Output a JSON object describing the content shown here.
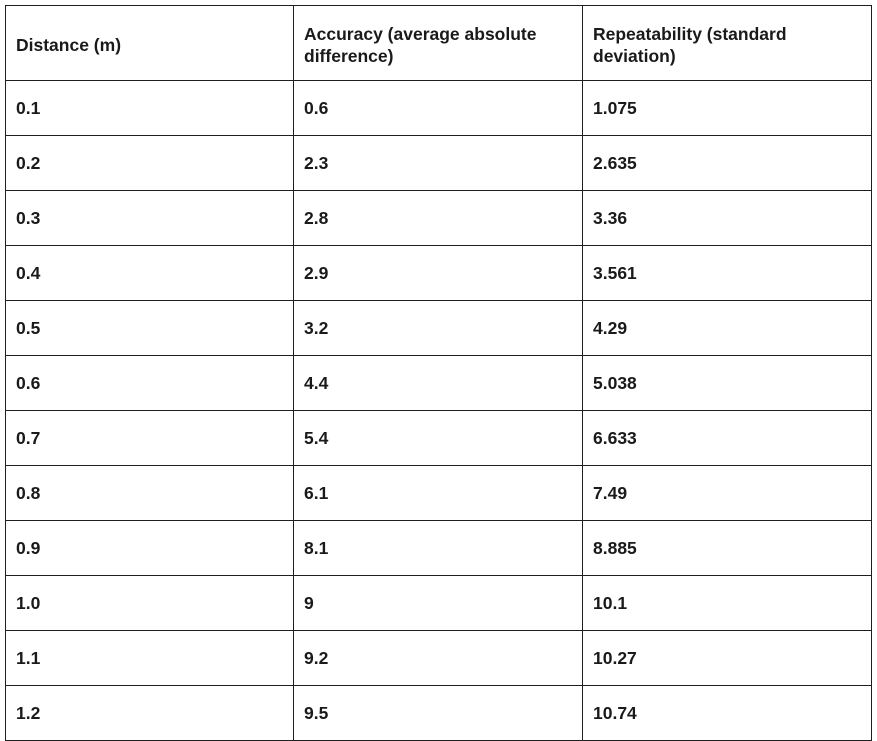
{
  "table": {
    "headers": [
      "Distance (m)",
      "Accuracy (average absolute difference)",
      "Repeatability (standard deviation)"
    ],
    "rows": [
      [
        "0.1",
        "0.6",
        "1.075"
      ],
      [
        "0.2",
        "2.3",
        "2.635"
      ],
      [
        "0.3",
        "2.8",
        "3.36"
      ],
      [
        "0.4",
        "2.9",
        "3.561"
      ],
      [
        "0.5",
        "3.2",
        "4.29"
      ],
      [
        "0.6",
        "4.4",
        "5.038"
      ],
      [
        "0.7",
        "5.4",
        "6.633"
      ],
      [
        "0.8",
        "6.1",
        "7.49"
      ],
      [
        "0.9",
        "8.1",
        "8.885"
      ],
      [
        "1.0",
        "9",
        "10.1"
      ],
      [
        "1.1",
        "9.2",
        "10.27"
      ],
      [
        "1.2",
        "9.5",
        "10.74"
      ]
    ]
  }
}
